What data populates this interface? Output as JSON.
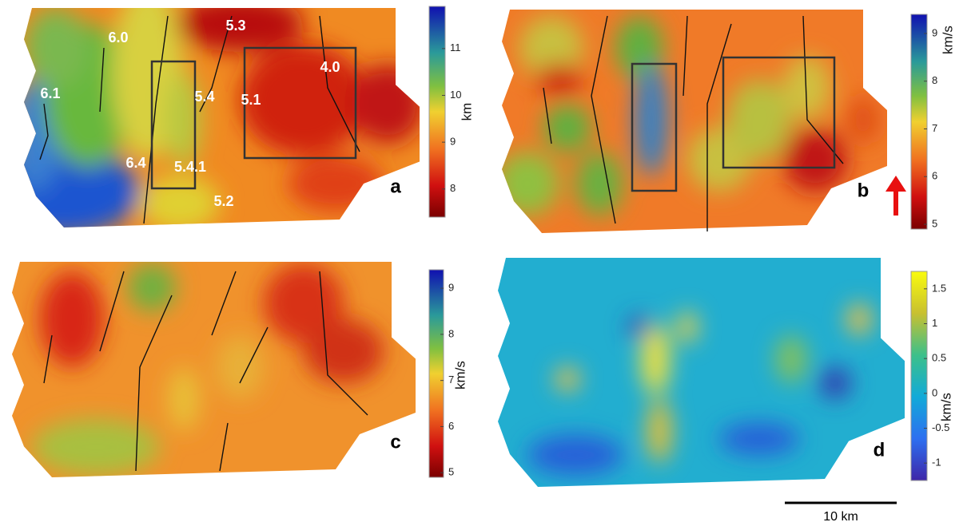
{
  "panels": [
    {
      "label": "a",
      "unit": "km",
      "colorbar": {
        "lim": [
          7.4,
          11.9
        ],
        "ticks": [
          8,
          9,
          10,
          11
        ]
      },
      "annotations": [
        "6.0",
        "5.3",
        "4.0",
        "6.1",
        "5.4",
        "5.1",
        "6.4",
        "5.4.1",
        "5.2"
      ]
    },
    {
      "label": "b",
      "unit": "km/s",
      "colorbar": {
        "lim": [
          4.9,
          9.4
        ],
        "ticks": [
          5,
          6,
          7,
          8,
          9
        ]
      }
    },
    {
      "label": "c",
      "unit": "km/s",
      "colorbar": {
        "lim": [
          4.9,
          9.4
        ],
        "ticks": [
          5,
          6,
          7,
          8,
          9
        ]
      }
    },
    {
      "label": "d",
      "unit": "km/s",
      "colorbar": {
        "lim": [
          -1.25,
          1.75
        ],
        "ticks": [
          -1,
          -0.5,
          0,
          0.5,
          1,
          1.5
        ]
      }
    }
  ],
  "scale_bar": "10 km"
}
